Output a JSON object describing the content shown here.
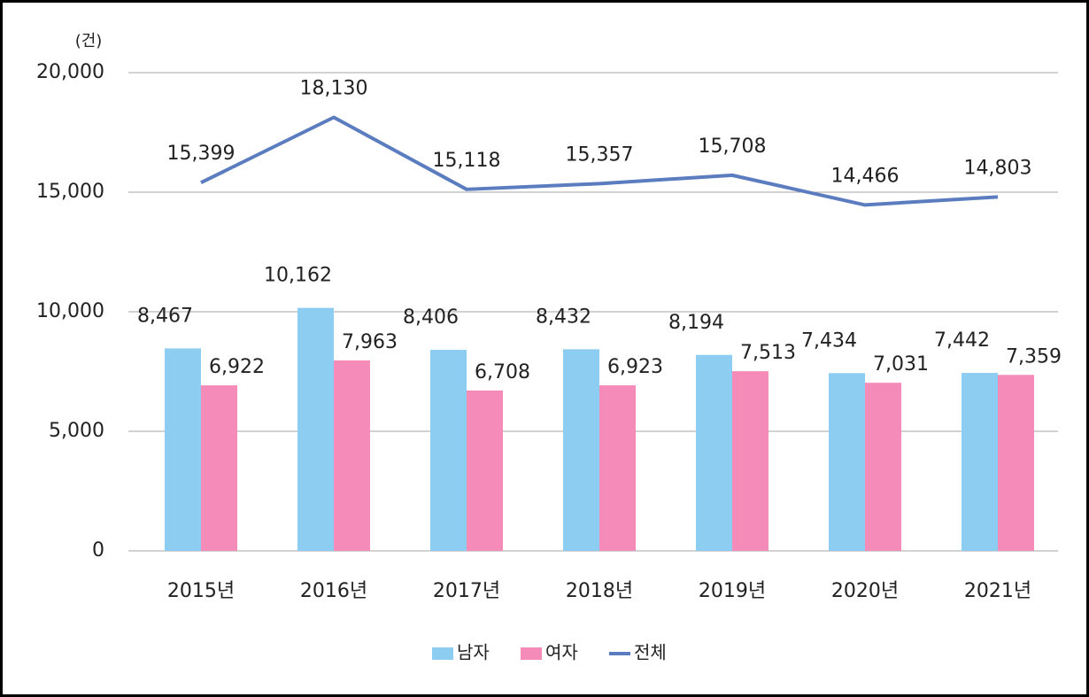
{
  "chart_data": {
    "type": "bar",
    "y_axis_label": "(건)",
    "categories": [
      "2015년",
      "2016년",
      "2017년",
      "2018년",
      "2019년",
      "2020년",
      "2021년"
    ],
    "series": [
      {
        "name": "남자",
        "type": "bar",
        "color": "#8ecdf2",
        "values": [
          8467,
          10162,
          8406,
          8432,
          8194,
          7434,
          7442
        ],
        "value_labels": [
          "8,467",
          "10,162",
          "8,406",
          "8,432",
          "8,194",
          "7,434",
          "7,442"
        ]
      },
      {
        "name": "여자",
        "type": "bar",
        "color": "#f48bb8",
        "values": [
          6922,
          7963,
          6708,
          6923,
          7513,
          7031,
          7359
        ],
        "value_labels": [
          "6,922",
          "7,963",
          "6,708",
          "6,923",
          "7,513",
          "7,031",
          "7,359"
        ]
      },
      {
        "name": "전체",
        "type": "line",
        "color": "#5b7dbf",
        "values": [
          15399,
          18130,
          15118,
          15357,
          15708,
          14466,
          14803
        ],
        "value_labels": [
          "15,399",
          "18,130",
          "15,118",
          "15,357",
          "15,708",
          "14,466",
          "14,803"
        ]
      }
    ],
    "ylim": [
      0,
      20000
    ],
    "yticks": [
      0,
      {
        "value": 5000,
        "label": "5,000"
      },
      {
        "value": 10000,
        "label": "10,000"
      },
      {
        "value": 15000,
        "label": "15,000"
      },
      {
        "value": 20000,
        "label": "20,000"
      }
    ],
    "grid": true,
    "legend": "bottom"
  }
}
